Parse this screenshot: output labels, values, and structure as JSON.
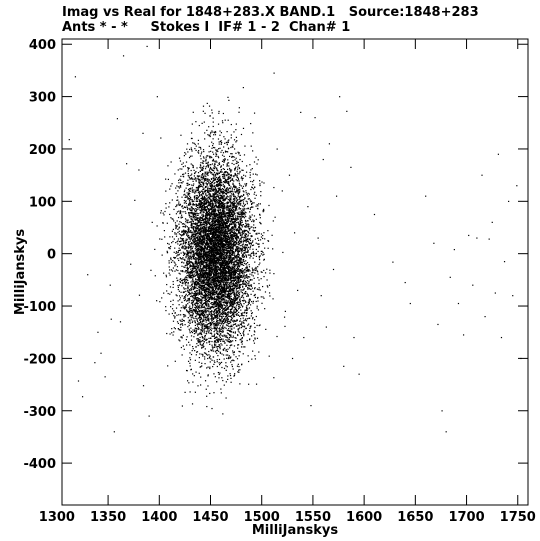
{
  "header": {
    "line1": "Imag vs Real for 1848+283.X BAND.1   Source:1848+283",
    "line2": "Ants * - *     Stokes I  IF# 1 - 2  Chan# 1"
  },
  "chart_data": {
    "type": "scatter",
    "xlabel": "MilliJanskys",
    "ylabel": "MilliJanskys",
    "xlim": [
      1305,
      1760
    ],
    "ylim": [
      -480,
      410
    ],
    "x_ticks": [
      1300,
      1350,
      1400,
      1450,
      1500,
      1550,
      1600,
      1650,
      1700,
      1750
    ],
    "y_ticks": [
      -400,
      -300,
      -200,
      -100,
      0,
      100,
      200,
      300,
      400
    ],
    "grid": false,
    "marker_color": "#000000",
    "cluster": {
      "x_center": 1455,
      "y_center": 0,
      "x_spread": 18,
      "y_spread": 90,
      "count": 9000
    },
    "outliers": [
      {
        "x": 1312,
        "y": 218
      },
      {
        "x": 1318,
        "y": 338
      },
      {
        "x": 1321,
        "y": -243
      },
      {
        "x": 1325,
        "y": -273
      },
      {
        "x": 1330,
        "y": -40
      },
      {
        "x": 1337,
        "y": -208
      },
      {
        "x": 1340,
        "y": -150
      },
      {
        "x": 1343,
        "y": -190
      },
      {
        "x": 1347,
        "y": -235
      },
      {
        "x": 1352,
        "y": -60
      },
      {
        "x": 1353,
        "y": -125
      },
      {
        "x": 1356,
        "y": -340
      },
      {
        "x": 1359,
        "y": 258
      },
      {
        "x": 1362,
        "y": -130
      },
      {
        "x": 1365,
        "y": 378
      },
      {
        "x": 1368,
        "y": 172
      },
      {
        "x": 1372,
        "y": -20
      },
      {
        "x": 1376,
        "y": 102
      },
      {
        "x": 1380,
        "y": 160
      },
      {
        "x": 1384,
        "y": 230
      },
      {
        "x": 1388,
        "y": 396
      },
      {
        "x": 1390,
        "y": -310
      },
      {
        "x": 1393,
        "y": 60
      },
      {
        "x": 1396,
        "y": -42
      },
      {
        "x": 1398,
        "y": 300
      },
      {
        "x": 1512,
        "y": 345
      },
      {
        "x": 1515,
        "y": 200
      },
      {
        "x": 1520,
        "y": 120
      },
      {
        "x": 1523,
        "y": -110
      },
      {
        "x": 1527,
        "y": 150
      },
      {
        "x": 1530,
        "y": -200
      },
      {
        "x": 1532,
        "y": 40
      },
      {
        "x": 1535,
        "y": -70
      },
      {
        "x": 1538,
        "y": 270
      },
      {
        "x": 1541,
        "y": -160
      },
      {
        "x": 1545,
        "y": 90
      },
      {
        "x": 1548,
        "y": -290
      },
      {
        "x": 1552,
        "y": 260
      },
      {
        "x": 1555,
        "y": 30
      },
      {
        "x": 1558,
        "y": -80
      },
      {
        "x": 1560,
        "y": 180
      },
      {
        "x": 1563,
        "y": -140
      },
      {
        "x": 1566,
        "y": 210
      },
      {
        "x": 1570,
        "y": -30
      },
      {
        "x": 1573,
        "y": 110
      },
      {
        "x": 1576,
        "y": 300
      },
      {
        "x": 1580,
        "y": -215
      },
      {
        "x": 1583,
        "y": 272
      },
      {
        "x": 1587,
        "y": 165
      },
      {
        "x": 1590,
        "y": -160
      },
      {
        "x": 1595,
        "y": -230
      },
      {
        "x": 1610,
        "y": 75
      },
      {
        "x": 1628,
        "y": -16
      },
      {
        "x": 1640,
        "y": -55
      },
      {
        "x": 1645,
        "y": -95
      },
      {
        "x": 1660,
        "y": 110
      },
      {
        "x": 1668,
        "y": 20
      },
      {
        "x": 1672,
        "y": -135
      },
      {
        "x": 1676,
        "y": -300
      },
      {
        "x": 1680,
        "y": -340
      },
      {
        "x": 1684,
        "y": -45
      },
      {
        "x": 1688,
        "y": 8
      },
      {
        "x": 1692,
        "y": -95
      },
      {
        "x": 1697,
        "y": -155
      },
      {
        "x": 1702,
        "y": 35
      },
      {
        "x": 1706,
        "y": -60
      },
      {
        "x": 1710,
        "y": 30
      },
      {
        "x": 1715,
        "y": 150
      },
      {
        "x": 1718,
        "y": -120
      },
      {
        "x": 1722,
        "y": 28
      },
      {
        "x": 1725,
        "y": 60
      },
      {
        "x": 1728,
        "y": -75
      },
      {
        "x": 1731,
        "y": 190
      },
      {
        "x": 1734,
        "y": -160
      },
      {
        "x": 1737,
        "y": -15
      },
      {
        "x": 1741,
        "y": 100
      },
      {
        "x": 1745,
        "y": -80
      },
      {
        "x": 1749,
        "y": 130
      },
      {
        "x": 1753,
        "y": -200
      }
    ]
  }
}
